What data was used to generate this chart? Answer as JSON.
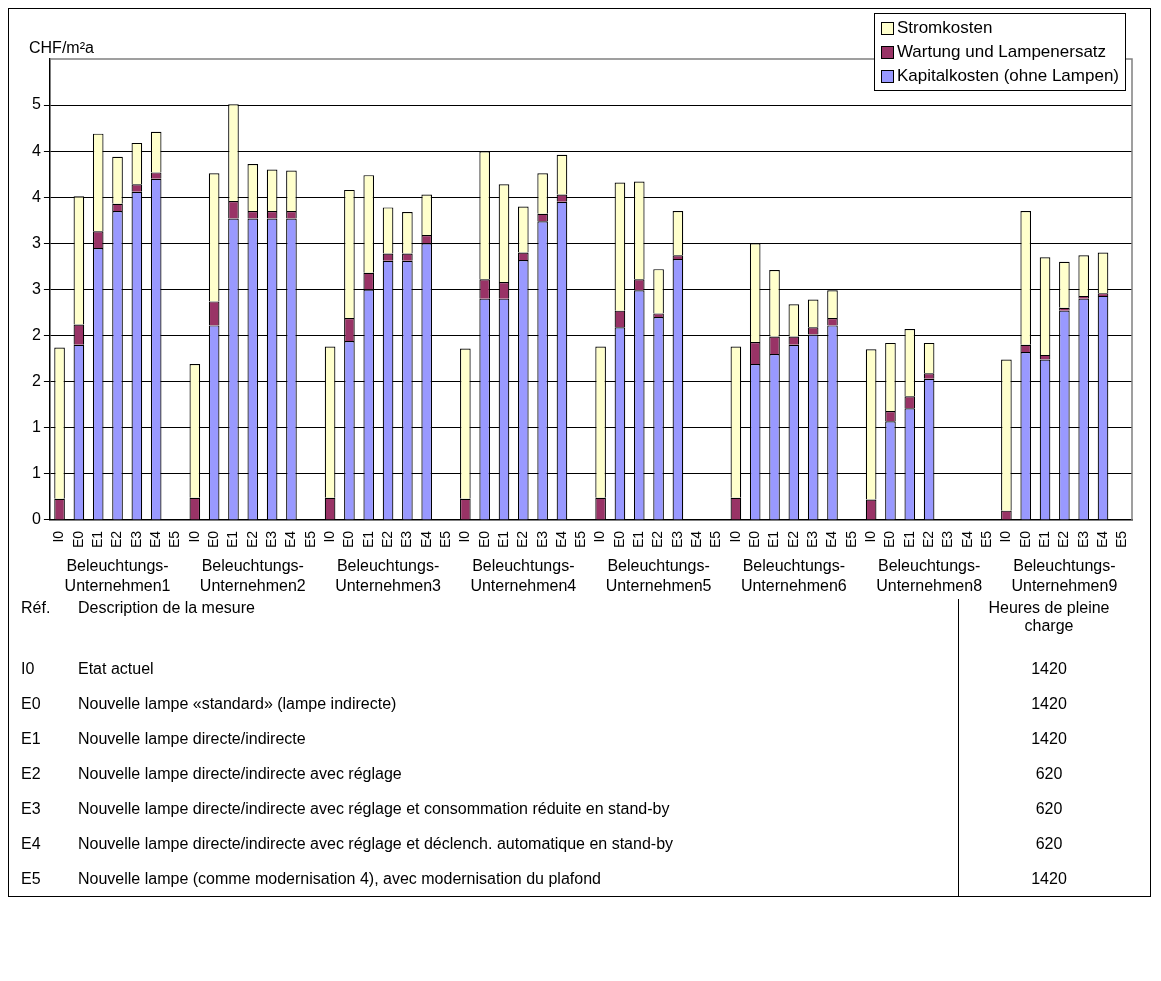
{
  "chart_data": [
    {
      "type": "bar",
      "stacked": true,
      "ylabel": "CHF/m²a",
      "ylim": [
        0,
        5
      ],
      "yticks": [
        0,
        {
          "value": 0.5,
          "label": "1"
        },
        1,
        {
          "value": 1.5,
          "label": "2"
        },
        2,
        {
          "value": 2.5,
          "label": "3"
        },
        3,
        {
          "value": 3.5,
          "label": "4"
        },
        4,
        {
          "value": 4.5,
          "label": "5"
        }
      ],
      "grid": "y",
      "legend": "top right",
      "categories": [
        "I0",
        "E0",
        "E1",
        "E2",
        "E3",
        "E4",
        "E5",
        "I0",
        "E0",
        "E1",
        "E2",
        "E3",
        "E4",
        "E5",
        "I0",
        "E0",
        "E1",
        "E2",
        "E3",
        "E4",
        "E5",
        "I0",
        "E0",
        "E1",
        "E2",
        "E3",
        "E4",
        "E5",
        "I0",
        "E0",
        "E1",
        "E2",
        "E3",
        "E4",
        "E5",
        "I0",
        "E0",
        "E1",
        "E2",
        "E3",
        "E4",
        "E5",
        "I0",
        "E0",
        "E1",
        "E2",
        "E3",
        "E4",
        "E5",
        "I0",
        "E0",
        "E1",
        "E2",
        "E3",
        "E4",
        "E5"
      ],
      "series": [
        {
          "name": "Kapitalkosten (ohne Lampen)",
          "color": "#9999ff",
          "values": [
            0,
            1.9,
            2.95,
            3.35,
            3.56,
            3.7,
            null,
            0,
            2.11,
            3.27,
            3.27,
            3.27,
            3.27,
            null,
            0,
            1.94,
            2.5,
            2.81,
            2.81,
            3.0,
            null,
            0,
            2.4,
            2.4,
            2.82,
            3.24,
            3.45,
            null,
            0,
            2.09,
            2.49,
            2.2,
            2.83,
            null,
            null,
            0,
            1.69,
            1.8,
            1.9,
            2.01,
            2.11,
            null,
            0,
            1.07,
            1.21,
            1.53,
            null,
            null,
            null,
            0,
            1.82,
            1.74,
            2.27,
            2.4,
            2.43,
            null
          ]
        },
        {
          "name": "Wartung und Lampenersatz",
          "color": "#993366",
          "values": [
            0.23,
            0.22,
            0.18,
            0.08,
            0.08,
            0.07,
            null,
            0.24,
            0.26,
            0.19,
            0.08,
            0.08,
            0.08,
            null,
            0.24,
            0.25,
            0.18,
            0.08,
            0.08,
            0.09,
            null,
            0.23,
            0.21,
            0.18,
            0.08,
            0.08,
            0.08,
            null,
            0.24,
            0.18,
            0.12,
            0.04,
            0.04,
            null,
            null,
            0.24,
            0.24,
            0.19,
            0.09,
            0.08,
            0.08,
            null,
            0.22,
            0.11,
            0.13,
            0.06,
            null,
            null,
            null,
            0.1,
            0.08,
            0.05,
            0.03,
            0.03,
            0.03,
            null
          ]
        },
        {
          "name": "Stromkosten",
          "color": "#ffffcc",
          "values": [
            1.64,
            1.39,
            1.06,
            0.51,
            0.45,
            0.44,
            null,
            1.45,
            1.39,
            1.05,
            0.51,
            0.45,
            0.44,
            null,
            1.64,
            1.39,
            1.06,
            0.5,
            0.45,
            0.44,
            null,
            1.63,
            1.39,
            1.06,
            0.5,
            0.44,
            0.43,
            null,
            1.64,
            1.39,
            1.06,
            0.48,
            0.48,
            null,
            null,
            1.64,
            1.07,
            0.72,
            0.35,
            0.3,
            0.3,
            null,
            1.63,
            0.74,
            0.73,
            0.33,
            null,
            null,
            null,
            1.64,
            1.45,
            1.06,
            0.5,
            0.44,
            0.44,
            null
          ]
        }
      ],
      "annotations": [
        "Beleuchtungs-Unternehmen1",
        "Beleuchtungs-Unternehmen2",
        "Beleuchtungs-Unternehmen3",
        "Beleuchtungs-Unternehmen4",
        "Beleuchtungs-Unternehmen5",
        "Beleuchtungs-Unternehmen6",
        "Beleuchtungs-Unternehmen8",
        "Beleuchtungs-Unternehmen9"
      ]
    },
    {
      "type": "other",
      "annotations": [
        "Réf.",
        "Description de la mesure",
        "Heures de pleine charge",
        "I0",
        "Etat actuel",
        "1420",
        "E0",
        "Nouvelle lampe «standard» (lampe indirecte)",
        "1420",
        "E1",
        "Nouvelle lampe directe/indirecte",
        "1420",
        "E2",
        "Nouvelle lampe directe/indirecte avec réglage",
        "620",
        "E3",
        "Nouvelle lampe directe/indirecte avec réglage et consommation réduite en stand-by",
        "620",
        "E4",
        "Nouvelle lampe directe/indirecte avec réglage et déclench. automatique en stand-by",
        "620",
        "E5",
        "Nouvelle lampe (comme modernisation 4), avec modernisation du plafond",
        "1420"
      ]
    }
  ]
}
